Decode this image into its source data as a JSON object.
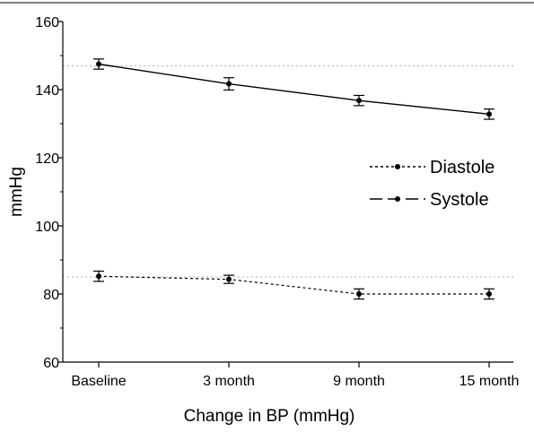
{
  "chart_data": {
    "type": "line",
    "categories": [
      "Baseline",
      "3 month",
      "9 month",
      "15 month"
    ],
    "xlabel": "Change in BP (mmHg)",
    "ylabel": "mmHg",
    "ylim": [
      60,
      160
    ],
    "yticks": [
      60,
      80,
      100,
      120,
      140,
      160
    ],
    "reference_lines": [
      147,
      85
    ],
    "grid": false,
    "legend_position": "right",
    "series": [
      {
        "name": "Diastole",
        "style": "dotted",
        "values": [
          85.2,
          84.3,
          80.0,
          80.0
        ],
        "errors": [
          1.5,
          1.2,
          1.5,
          1.5
        ]
      },
      {
        "name": "Systole",
        "style": "solid",
        "values": [
          147.5,
          141.7,
          136.8,
          132.8
        ],
        "errors": [
          1.5,
          1.8,
          1.5,
          1.5
        ]
      }
    ]
  }
}
